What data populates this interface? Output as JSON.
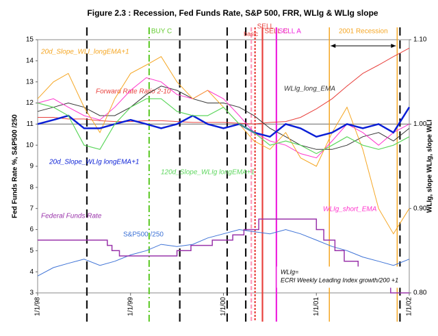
{
  "chart_data": {
    "type": "line",
    "title": "Figure 2.3 :  Recession,  Fed Funds Rate,  S&P 500,  FRR,  WLIg  &  WLIg slope",
    "y_label": "Fed Funds Rate %,     S&P500 /250",
    "y2_label": "WLIg,   slope WLIg,   slope WLI",
    "xlim": [
      1998,
      2002
    ],
    "xticks": [
      {
        "value": 1998,
        "label": "1/1/98"
      },
      {
        "value": 1999,
        "label": "1/1/99"
      },
      {
        "value": 2000,
        "label": "1/1/00"
      },
      {
        "value": 2001,
        "label": "1/1/01"
      },
      {
        "value": 2002,
        "label": "1/1/02"
      }
    ],
    "ylim": [
      3,
      15
    ],
    "yticks": [
      3,
      4,
      5,
      6,
      7,
      8,
      9,
      10,
      11,
      12,
      13,
      14,
      15
    ],
    "y2lim": [
      0.8,
      1.1
    ],
    "y2ticks": [
      {
        "value": 0.8,
        "label": "0.80"
      },
      {
        "value": 0.9,
        "label": "0.90"
      },
      {
        "value": 1.0,
        "label": "1.00"
      },
      {
        "value": 1.1,
        "label": "1.10"
      }
    ],
    "reference_y2": 1.0,
    "x": [
      1998,
      1998.17,
      1998.33,
      1998.5,
      1998.67,
      1998.83,
      1999,
      1999.17,
      1999.33,
      1999.5,
      1999.67,
      1999.83,
      2000,
      2000.17,
      2000.33,
      2000.5,
      2000.67,
      2000.83,
      2001,
      2001.17,
      2001.33,
      2001.5,
      2001.67,
      2001.83,
      2002
    ],
    "series": [
      {
        "name": "S&P500 /250",
        "color": "#3d72d6",
        "width": 1,
        "values": [
          3.8,
          4.2,
          4.4,
          4.6,
          4.3,
          4.5,
          4.8,
          5.0,
          5.3,
          5.2,
          5.3,
          5.6,
          5.8,
          6.0,
          5.9,
          5.8,
          6.0,
          5.8,
          5.5,
          5.2,
          5.0,
          4.7,
          4.5,
          4.3,
          4.6
        ]
      },
      {
        "name": "Forward Rate Ratio 2-10",
        "color": "#e8403c",
        "width": 1,
        "axis": "y2",
        "values": [
          1.008,
          1.008,
          1.006,
          1.006,
          1.004,
          1.003,
          1.003,
          1.004,
          1.004,
          1.003,
          1.002,
          1.002,
          1.002,
          1.001,
          1.0,
          1.002,
          1.003,
          1.008,
          1.018,
          1.03,
          1.045,
          1.06,
          1.07,
          1.08,
          1.09
        ]
      },
      {
        "name": "WLIg_long_EMA",
        "color": "#333333",
        "width": 1,
        "axis": "y2",
        "values": [
          1.015,
          1.02,
          1.025,
          1.02,
          1.01,
          1.01,
          1.02,
          1.035,
          1.045,
          1.04,
          1.03,
          1.025,
          1.025,
          1.02,
          1.01,
          0.995,
          0.985,
          0.975,
          0.97,
          0.97,
          0.975,
          0.985,
          0.99,
          0.98,
          0.995
        ]
      },
      {
        "name": "WLIg_short_EMA",
        "color": "#ff33cc",
        "width": 1,
        "axis": "y2",
        "values": [
          1.025,
          1.03,
          1.02,
          1.01,
          1.005,
          1.02,
          1.04,
          1.055,
          1.05,
          1.035,
          1.03,
          1.04,
          1.03,
          1.01,
          0.99,
          0.98,
          0.975,
          0.965,
          0.96,
          0.98,
          1.0,
          0.99,
          0.975,
          0.99,
          1.0
        ]
      },
      {
        "name": "20d_Slope_WLI_longEMA+1",
        "color": "#f5a623",
        "width": 1,
        "axis": "y2",
        "values": [
          1.03,
          1.05,
          1.06,
          1.02,
          0.99,
          1.03,
          1.06,
          1.07,
          1.08,
          1.05,
          1.03,
          1.04,
          1.02,
          1.0,
          0.98,
          0.97,
          0.99,
          0.96,
          0.95,
          0.99,
          1.02,
          0.97,
          0.9,
          0.87,
          0.9
        ]
      },
      {
        "name": "20d_Slope_WLIg longEMA+1",
        "color": "#0a1fd6",
        "width": 2.5,
        "axis": "y2",
        "values": [
          1.0,
          1.005,
          1.01,
          0.995,
          0.995,
          1.0,
          1.005,
          1.0,
          0.995,
          1.0,
          1.01,
          1.0,
          0.995,
          1.0,
          0.99,
          0.985,
          1.0,
          0.995,
          0.985,
          0.99,
          1.0,
          0.995,
          1.0,
          0.99,
          1.02
        ]
      },
      {
        "name": "120d_Slope_WLIg longEMA+1",
        "color": "#5cd65c",
        "width": 1.2,
        "axis": "y2",
        "values": [
          1.025,
          1.02,
          1.01,
          0.975,
          0.97,
          1.0,
          1.02,
          1.03,
          1.03,
          1.015,
          1.01,
          1.01,
          1.02,
          1.0,
          0.99,
          0.975,
          0.98,
          0.975,
          0.965,
          0.975,
          0.985,
          0.975,
          0.97,
          0.975,
          0.985
        ]
      },
      {
        "name": "Federal Funds Rate",
        "color": "#9933aa",
        "width": 1.5,
        "x": [
          1998,
          1998.75,
          1998.75,
          1998.8,
          1998.8,
          1998.88,
          1998.88,
          1999.5,
          1999.5,
          1999.65,
          1999.65,
          1999.88,
          1999.88,
          2000.1,
          2000.1,
          2000.22,
          2000.22,
          2000.38,
          2000.38,
          2001.0,
          2001.0,
          2001.08,
          2001.08,
          2001.2,
          2001.2,
          2001.3,
          2001.3,
          2001.45,
          2001.45,
          2001.65,
          2001.65,
          2001.8,
          2001.8,
          2002
        ],
        "values": [
          5.5,
          5.5,
          5.25,
          5.25,
          5.0,
          5.0,
          4.75,
          4.75,
          5.0,
          5.0,
          5.25,
          5.25,
          5.5,
          5.5,
          5.75,
          5.75,
          6.0,
          6.0,
          6.5,
          6.5,
          6.0,
          6.0,
          5.5,
          5.5,
          5.0,
          5.0,
          4.5,
          4.5,
          4.0,
          4.0,
          3.5,
          3.5,
          3.0,
          3.0
        ]
      }
    ],
    "vlines": [
      {
        "x": 1998.53,
        "color": "#111111",
        "dash": "12,7"
      },
      {
        "x": 1999.2,
        "color": "#66cc33",
        "dash": "10,4,2,4",
        "label": "BUY C"
      },
      {
        "x": 1999.53,
        "color": "#111111",
        "dash": "12,7"
      },
      {
        "x": 2000.04,
        "color": "#111111",
        "dash": "12,7"
      },
      {
        "x": 2000.24,
        "color": "#111111",
        "dash": "12,7"
      },
      {
        "x": 2000.3,
        "color": "#ff99bb",
        "dash": "6,3"
      },
      {
        "x": 2000.34,
        "color": "#e8403c",
        "dash": "3,2",
        "label": "SELL",
        "sublabel": "basic"
      },
      {
        "x": 2000.42,
        "color": "#e8403c",
        "dash": "none",
        "label": "SELL C"
      },
      {
        "x": 2000.57,
        "color": "#ee22dd",
        "dash": "none",
        "label": "SELL A"
      },
      {
        "x": 2001.9,
        "color": "#111111",
        "dash": "12,7"
      }
    ],
    "recession": {
      "label": "2001 Recession",
      "start": 2001.14,
      "end": 2001.87,
      "color": "#f5a623"
    },
    "note": [
      "WLIg=",
      "ECRI Weekly Leading Index growth/200 +1"
    ]
  }
}
